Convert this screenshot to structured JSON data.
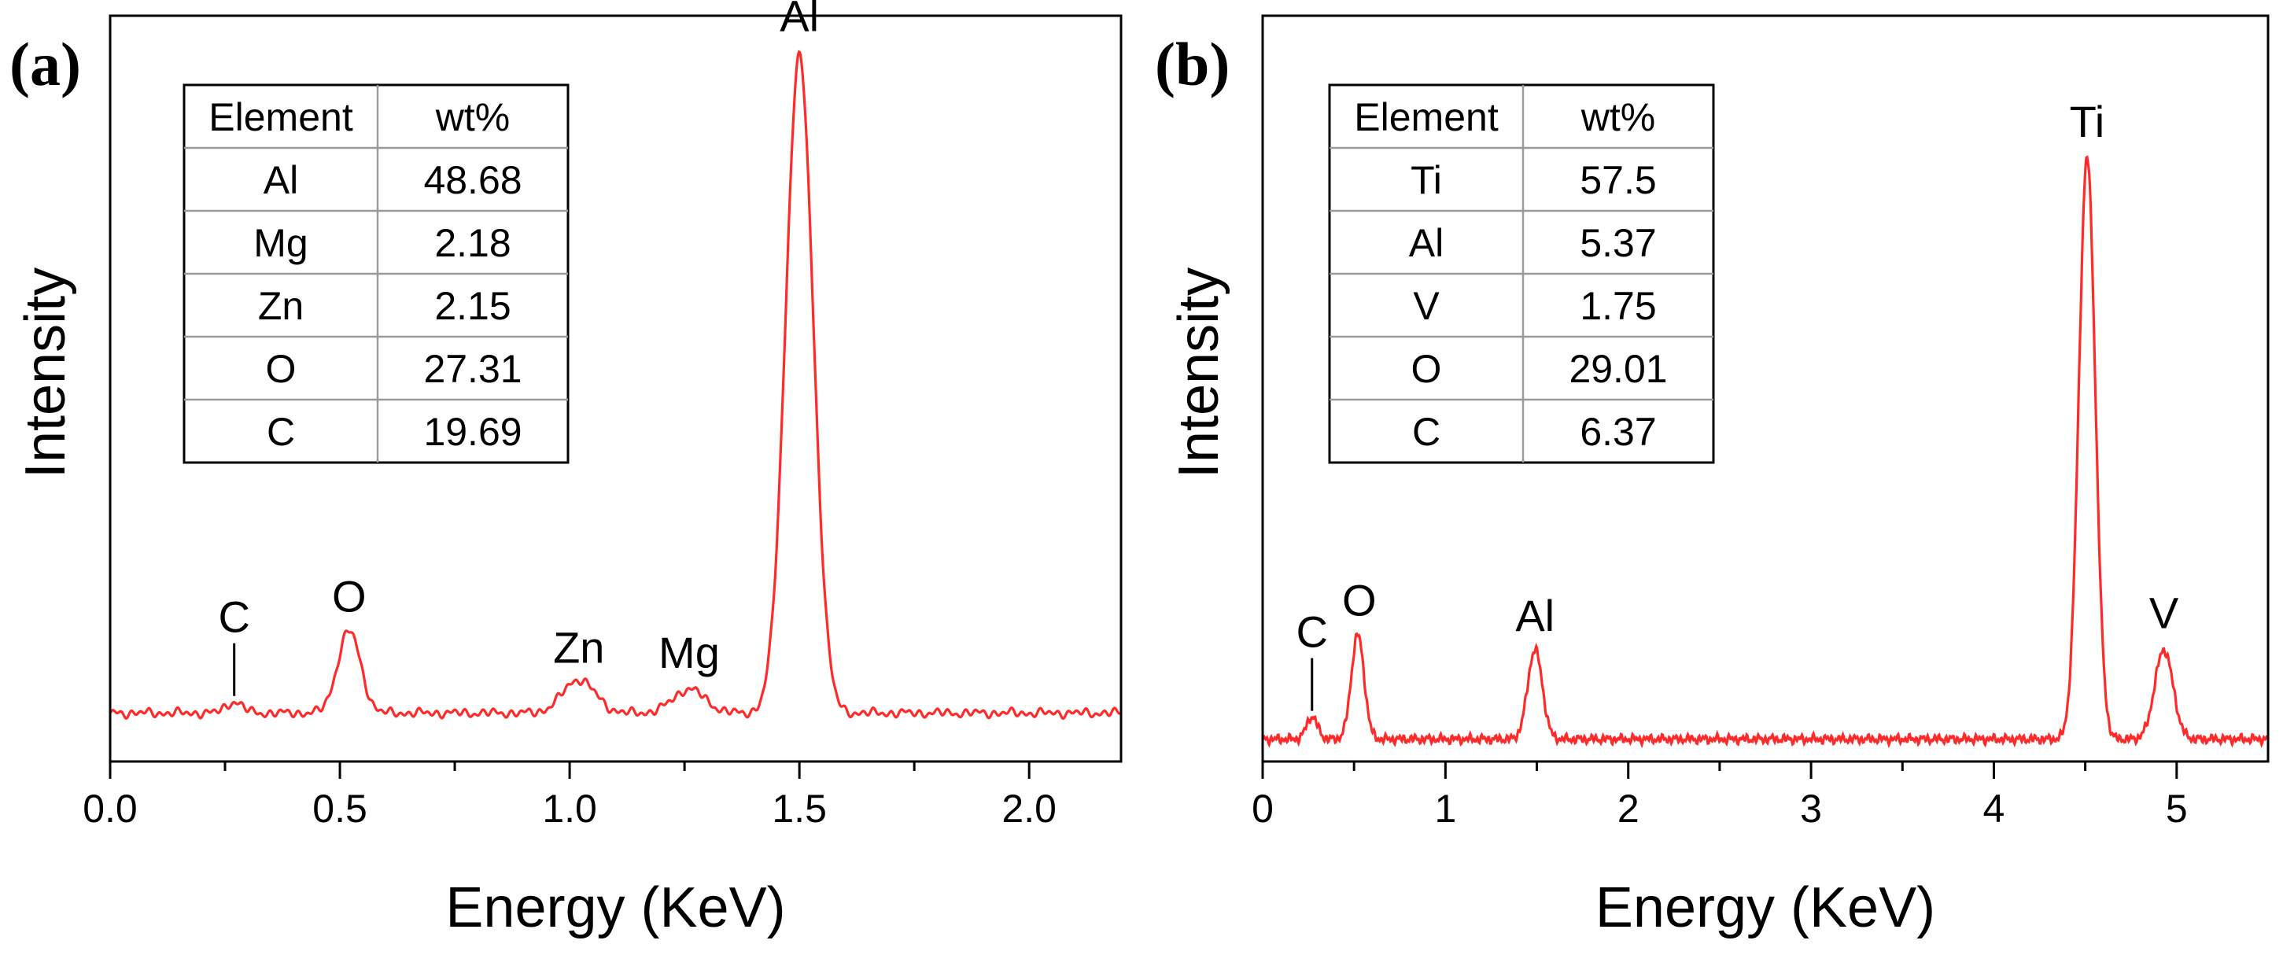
{
  "chart_data": [
    {
      "type": "line",
      "panel_label": "(a)",
      "xlabel": "Energy (KeV)",
      "ylabel": "Intensity",
      "xlim": [
        0.0,
        2.2
      ],
      "ylim": [
        0,
        100
      ],
      "xticks": [
        0.0,
        0.5,
        1.0,
        1.5,
        2.0
      ],
      "xtick_labels": [
        "0.0",
        "0.5",
        "1.0",
        "1.5",
        "2.0"
      ],
      "line_color": "#ff2a2a",
      "baseline": 6.5,
      "peaks": [
        {
          "label": "C",
          "x": 0.27,
          "height": 1.5,
          "width": 0.018,
          "marker": true
        },
        {
          "label": "O",
          "x": 0.52,
          "height": 11,
          "width": 0.025
        },
        {
          "label": "Zn",
          "x": 1.02,
          "height": 4.5,
          "width": 0.035
        },
        {
          "label": "Mg",
          "x": 1.26,
          "height": 3.2,
          "width": 0.035
        },
        {
          "label": "Al",
          "x": 1.5,
          "height": 88,
          "width": 0.03
        }
      ],
      "table": {
        "headers": [
          "Element",
          "wt%"
        ],
        "rows": [
          [
            "Al",
            "48.68"
          ],
          [
            "Mg",
            "2.18"
          ],
          [
            "Zn",
            "2.15"
          ],
          [
            "O",
            "27.31"
          ],
          [
            "C",
            "19.69"
          ]
        ]
      }
    },
    {
      "type": "line",
      "panel_label": "(b)",
      "xlabel": "Energy (KeV)",
      "ylabel": "Intensity",
      "xlim": [
        0,
        5.5
      ],
      "ylim": [
        0,
        100
      ],
      "xticks": [
        0,
        1,
        2,
        3,
        4,
        5
      ],
      "xtick_labels": [
        "0",
        "1",
        "2",
        "3",
        "4",
        "5"
      ],
      "line_color": "#ff2a2a",
      "baseline": 3,
      "peaks": [
        {
          "label": "C",
          "x": 0.27,
          "height": 3,
          "width": 0.03,
          "marker": true
        },
        {
          "label": "O",
          "x": 0.52,
          "height": 14,
          "width": 0.035
        },
        {
          "label": "Al",
          "x": 1.49,
          "height": 12,
          "width": 0.04
        },
        {
          "label": "Ti",
          "x": 4.51,
          "height": 78,
          "width": 0.045
        },
        {
          "label": "V",
          "x": 4.93,
          "height": 12,
          "width": 0.05
        }
      ],
      "table": {
        "headers": [
          "Element",
          "wt%"
        ],
        "rows": [
          [
            "Ti",
            "57.5"
          ],
          [
            "Al",
            "5.37"
          ],
          [
            "V",
            "1.75"
          ],
          [
            "O",
            "29.01"
          ],
          [
            "C",
            "6.37"
          ]
        ]
      }
    }
  ]
}
